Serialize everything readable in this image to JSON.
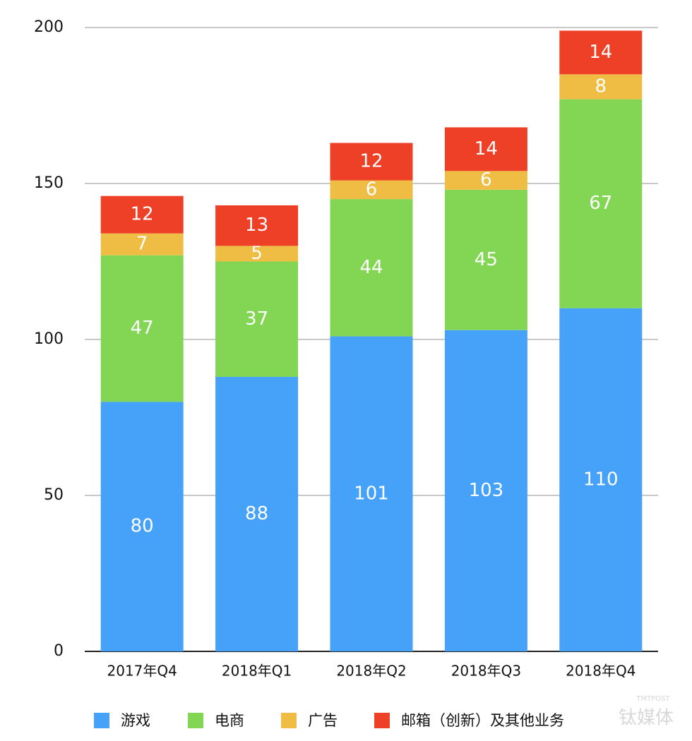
{
  "chart_data": {
    "type": "stacked-bar",
    "categories": [
      "2017年Q4",
      "2018年Q1",
      "2018年Q2",
      "2018年Q3",
      "2018年Q4"
    ],
    "series": [
      {
        "name": "游戏",
        "color": "#45a2f8",
        "values": [
          80,
          88,
          101,
          103,
          110
        ]
      },
      {
        "name": "电商",
        "color": "#82d654",
        "values": [
          47,
          37,
          44,
          45,
          67
        ]
      },
      {
        "name": "广告",
        "color": "#f0bd44",
        "values": [
          7,
          5,
          6,
          6,
          8
        ]
      },
      {
        "name": "邮箱（创新）及其他业务",
        "color": "#ee4027",
        "values": [
          12,
          13,
          12,
          14,
          14
        ]
      }
    ],
    "ylim": [
      0,
      200
    ],
    "yticks": [
      0,
      50,
      100,
      150,
      200
    ],
    "grid": true,
    "legend": "bottom"
  },
  "watermark": {
    "name": "钛媒体",
    "sub": "TMTPOST"
  }
}
